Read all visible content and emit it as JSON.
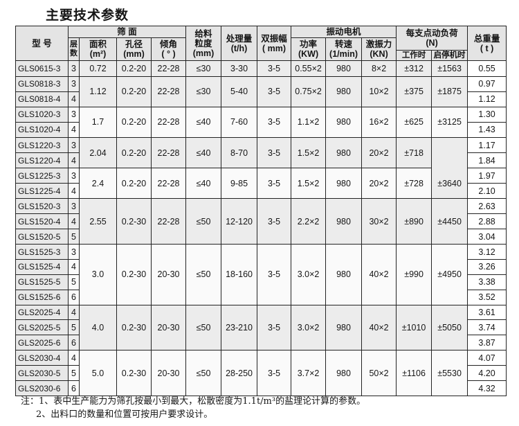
{
  "title": "主要技术参数",
  "header": {
    "model": "型 号",
    "screen_surface": "筛 面",
    "layers": "层数",
    "area": "面积\n(m²)",
    "hole": "孔径\n(mm)",
    "angle": "倾角\n( ° )",
    "feed_size": "给料\n粒度\n(mm)",
    "capacity": "处理量\n(t/h)",
    "amplitude": "双振幅\n( mm)",
    "motor": "振动电机",
    "power": "功率\n(KW)",
    "speed": "转速\n(1/min)",
    "force": "激振力\n(KN)",
    "load": "每支点动负荷\n(N)",
    "working": "工作时",
    "start_stop": "启停机时",
    "weight": "总重量\n( t )"
  },
  "groups": [
    {
      "models": [
        "GLS0615-3"
      ],
      "layers": [
        "3"
      ],
      "area": "0.72",
      "hole": "0.2-20",
      "angle": "22-28",
      "feed": "≤30",
      "capacity": "3-30",
      "amplitude": "3-5",
      "power": "0.55×2",
      "speed": "980",
      "force": "8×2",
      "working": "±312",
      "start_stop": "±1563",
      "weights": [
        "0.55"
      ]
    },
    {
      "models": [
        "GLS0818-3",
        "GLS0818-4"
      ],
      "layers": [
        "3",
        "4"
      ],
      "area": "1.12",
      "hole": "0.2-20",
      "angle": "22-28",
      "feed": "≤30",
      "capacity": "5-40",
      "amplitude": "3-5",
      "power": "0.75×2",
      "speed": "980",
      "force": "10×2",
      "working": "±375",
      "start_stop": "±1875",
      "weights": [
        "0.97",
        "1.12"
      ]
    },
    {
      "models": [
        "GLS1020-3",
        "GLS1020-4"
      ],
      "layers": [
        "3",
        "4"
      ],
      "area": "1.7",
      "hole": "0.2-20",
      "angle": "22-28",
      "feed": "≤40",
      "capacity": "7-60",
      "amplitude": "3-5",
      "power": "1.1×2",
      "speed": "980",
      "force": "16×2",
      "working": "±625",
      "start_stop": "±3125",
      "weights": [
        "1.30",
        "1.43"
      ]
    },
    {
      "models": [
        "GLS1220-3",
        "GLS1220-4"
      ],
      "layers": [
        "3",
        "4"
      ],
      "area": "2.04",
      "hole": "0.2-20",
      "angle": "22-28",
      "feed": "≤40",
      "capacity": "8-70",
      "amplitude": "3-5",
      "power": "1.5×2",
      "speed": "980",
      "force": "20×2",
      "working": "±718",
      "start_stop": "",
      "weights": [
        "1.17",
        "1.84"
      ]
    },
    {
      "models": [
        "GLS1225-3",
        "GLS1225-4"
      ],
      "layers": [
        "3",
        "4"
      ],
      "area": "2.4",
      "hole": "0.2-20",
      "angle": "22-28",
      "feed": "≤40",
      "capacity": "9-85",
      "amplitude": "3-5",
      "power": "1.5×2",
      "speed": "980",
      "force": "20×2",
      "working": "±728",
      "start_stop": "±3640",
      "weights": [
        "1.97",
        "2.10"
      ]
    },
    {
      "models": [
        "GLS1520-3",
        "GLS1520-4",
        "GLS1520-5"
      ],
      "layers": [
        "3",
        "4",
        "5"
      ],
      "area": "2.55",
      "hole": "0.2-30",
      "angle": "22-28",
      "feed": "≤50",
      "capacity": "12-120",
      "amplitude": "3-5",
      "power": "2.2×2",
      "speed": "980",
      "force": "30×2",
      "working": "±890",
      "start_stop": "±4450",
      "weights": [
        "2.63",
        "2.88",
        "3.04"
      ]
    },
    {
      "models": [
        "GLS1525-3",
        "GLS1525-4",
        "GLS1525-5",
        "GLS1525-6"
      ],
      "layers": [
        "3",
        "4",
        "5",
        "6"
      ],
      "area": "3.0",
      "hole": "0.2-30",
      "angle": "20-30",
      "feed": "≤50",
      "capacity": "18-160",
      "amplitude": "3-5",
      "power": "3.0×2",
      "speed": "980",
      "force": "40×2",
      "working": "±990",
      "start_stop": "±4950",
      "weights": [
        "3.12",
        "3.26",
        "3.38",
        "3.52"
      ]
    },
    {
      "models": [
        "GLS2025-4",
        "GLS2025-5",
        "GLS2025-6"
      ],
      "layers": [
        "4",
        "5",
        "6"
      ],
      "area": "4.0",
      "hole": "0.2-30",
      "angle": "20-30",
      "feed": "≤50",
      "capacity": "23-210",
      "amplitude": "3-5",
      "power": "3.0×2",
      "speed": "980",
      "force": "40×2",
      "working": "±1010",
      "start_stop": "±5050",
      "weights": [
        "3.61",
        "3.74",
        "3.87"
      ]
    },
    {
      "models": [
        "GLS2030-4",
        "GLS2030-5",
        "GLS2030-6"
      ],
      "layers": [
        "4",
        "5",
        "6"
      ],
      "area": "5.0",
      "hole": "0.2-30",
      "angle": "20-30",
      "feed": "≤50",
      "capacity": "28-250",
      "amplitude": "3-5",
      "power": "3.7×2",
      "speed": "980",
      "force": "50×2",
      "working": "±1106",
      "start_stop": "±5530",
      "weights": [
        "4.07",
        "4.20",
        "4.32"
      ]
    }
  ],
  "notes": {
    "note1": "注：1、表中生产能力为筛孔按最小到最大，松散密度为1.1t/m³的盐理论计算的参数。",
    "note2": "2、出料口的数量和位置可按用户要求设计。"
  }
}
